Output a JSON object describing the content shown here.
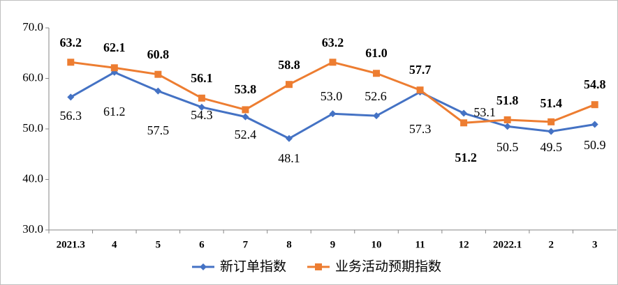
{
  "chart_data": {
    "type": "line",
    "categories": [
      "2021.3",
      "4",
      "5",
      "6",
      "7",
      "8",
      "9",
      "10",
      "11",
      "12",
      "2022.1",
      "2",
      "3"
    ],
    "series": [
      {
        "name": "新订单指数",
        "color": "#4472c4",
        "marker": "diamond",
        "values": [
          56.3,
          61.2,
          57.5,
          54.3,
          52.4,
          48.1,
          53.0,
          52.6,
          57.3,
          53.1,
          50.5,
          49.5,
          50.9
        ],
        "value_labels": [
          "56.3",
          "61.2",
          "57.5",
          "54.3",
          "52.4",
          "48.1",
          "53.0",
          "52.6",
          "57.3",
          "53.1",
          "50.5",
          "49.5",
          "50.9"
        ]
      },
      {
        "name": "业务活动预期指数",
        "color": "#ed7d31",
        "marker": "square",
        "values": [
          63.2,
          62.1,
          60.8,
          56.1,
          53.8,
          58.8,
          63.2,
          61.0,
          57.7,
          51.2,
          51.8,
          51.4,
          54.8
        ],
        "value_labels": [
          "63.2",
          "62.1",
          "60.8",
          "56.1",
          "53.8",
          "58.8",
          "63.2",
          "61.0",
          "57.7",
          "51.2",
          "51.8",
          "51.4",
          "54.8"
        ]
      }
    ],
    "ylim": [
      30,
      70
    ],
    "yticks": [
      {
        "value": 30,
        "label": "30.0"
      },
      {
        "value": 40,
        "label": "40.0"
      },
      {
        "value": 50,
        "label": "50.0"
      },
      {
        "value": 60,
        "label": "60.0"
      },
      {
        "value": 70,
        "label": "70.0"
      }
    ],
    "grid": false,
    "legend": "bottom"
  }
}
